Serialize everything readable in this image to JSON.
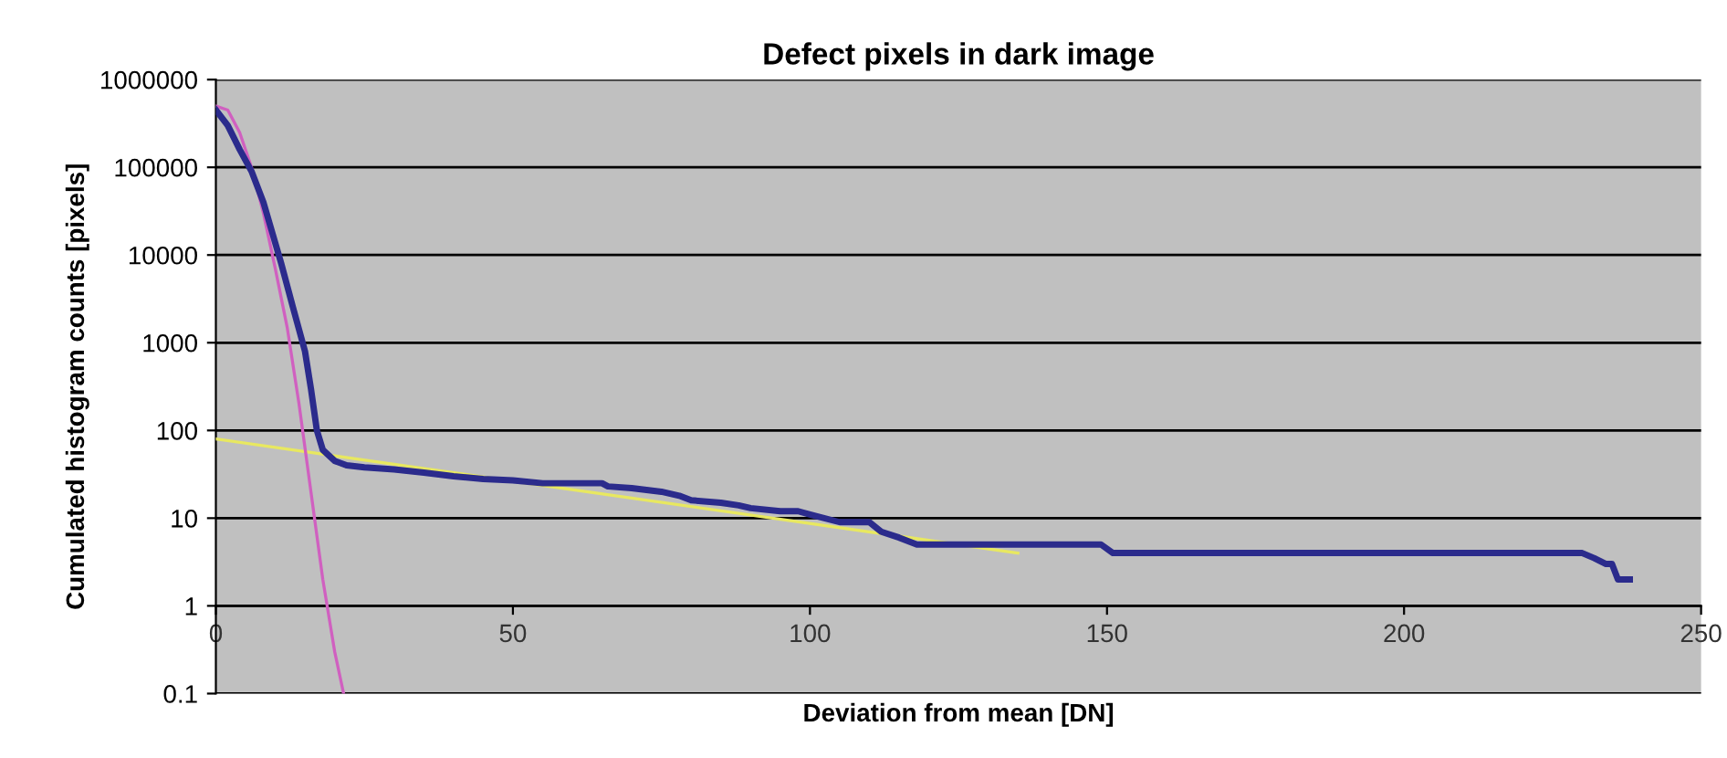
{
  "chart_data": {
    "type": "line",
    "title": "Defect pixels in dark image",
    "xlabel": "Deviation from mean [DN]",
    "ylabel": "Cumulated histogram counts [pixels]",
    "log": "y",
    "grid": "y",
    "xlim": [
      0,
      250
    ],
    "ylim": [
      0.1,
      1000000
    ],
    "xticks": [
      0,
      50,
      100,
      150,
      200,
      250
    ],
    "yticks": [
      0.1,
      1,
      10,
      100,
      1000,
      10000,
      100000,
      1000000
    ],
    "series": [
      {
        "color": "#2b2b8c",
        "x": [
          0,
          2,
          4,
          6,
          8,
          11,
          13,
          15,
          16,
          17,
          18,
          20,
          22,
          25,
          30,
          35,
          40,
          45,
          50,
          55,
          60,
          65,
          66,
          70,
          75,
          78,
          80,
          85,
          88,
          90,
          95,
          98,
          100,
          105,
          110,
          112,
          115,
          118,
          120,
          130,
          140,
          149,
          151,
          160,
          180,
          200,
          220,
          230,
          232,
          234,
          235,
          236,
          238
        ],
        "values": [
          450000,
          300000,
          160000,
          90000,
          40000,
          8000,
          2500,
          800,
          300,
          100,
          60,
          45,
          40,
          38,
          36,
          33,
          30,
          28,
          27,
          25,
          25,
          25,
          23,
          22,
          20,
          18,
          16,
          15,
          14,
          13,
          12,
          12,
          11,
          9,
          9,
          7,
          6,
          5,
          5,
          5,
          5,
          5,
          4,
          4,
          4,
          4,
          4,
          4,
          3.5,
          3,
          3,
          2,
          2
        ]
      },
      {
        "color": "#d060c0",
        "x": [
          0,
          2,
          4,
          6,
          8,
          10,
          12,
          14,
          16,
          18,
          20,
          21.5
        ],
        "values": [
          500000,
          450000,
          250000,
          100000,
          30000,
          7000,
          1500,
          200,
          20,
          2,
          0.3,
          0.1
        ]
      },
      {
        "color": "#e8e860",
        "x": [
          0,
          135
        ],
        "values": [
          80,
          4
        ]
      }
    ]
  }
}
